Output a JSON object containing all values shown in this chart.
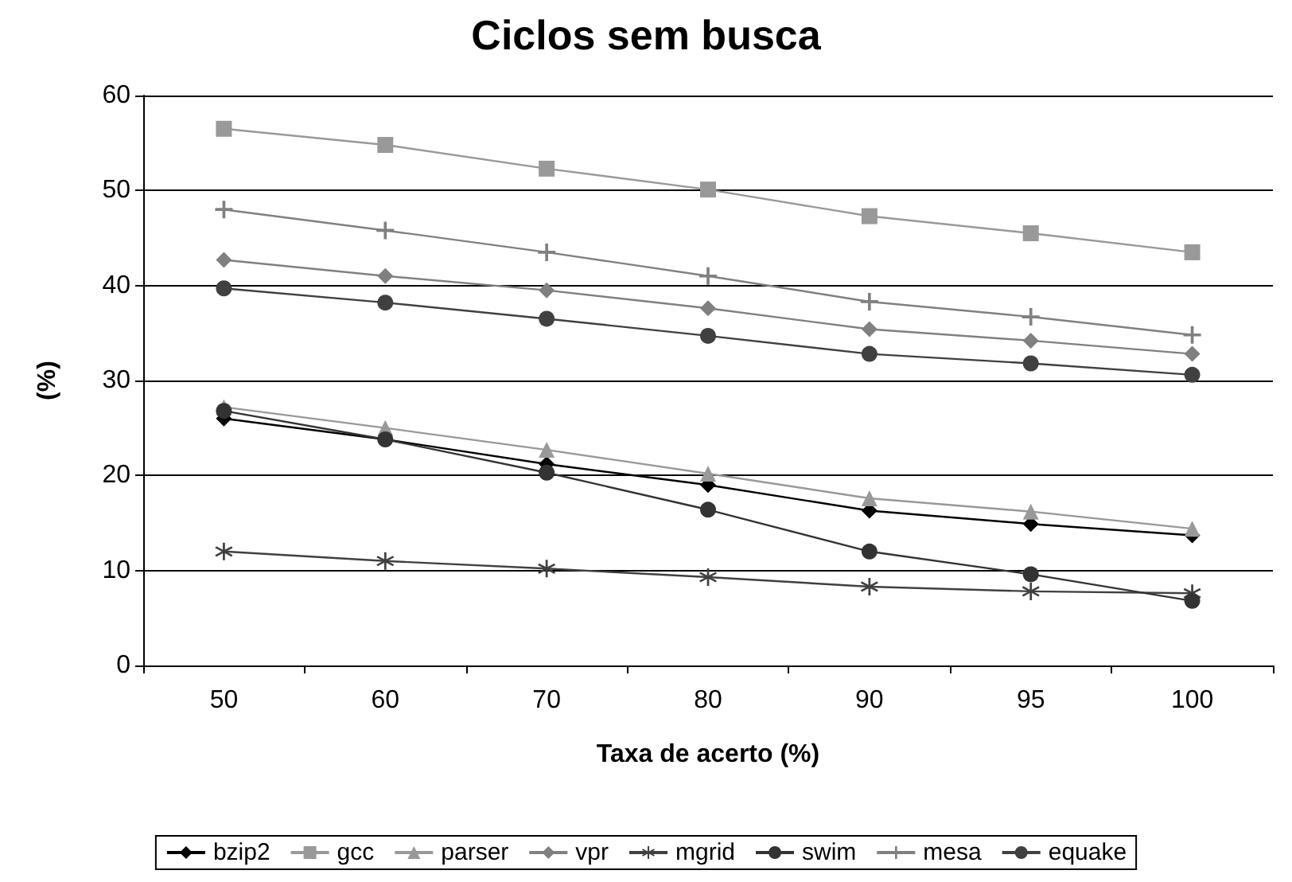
{
  "chart_data": {
    "type": "line",
    "title": "Ciclos sem busca",
    "xlabel": "Taxa de acerto (%)",
    "ylabel": "(%)",
    "categories": [
      "50",
      "60",
      "70",
      "80",
      "90",
      "95",
      "100"
    ],
    "ylim": [
      0,
      60
    ],
    "yticks": [
      0,
      10,
      20,
      30,
      40,
      50,
      60
    ],
    "grid": "y",
    "legend": "bottom",
    "line_style": "solid",
    "series": [
      {
        "name": "bzip2",
        "color": "#000000",
        "marker": "diamond",
        "values": [
          26,
          23.8,
          21.2,
          19,
          16.3,
          14.9,
          13.7
        ]
      },
      {
        "name": "gcc",
        "color": "#999999",
        "marker": "square",
        "values": [
          56.5,
          54.8,
          52.3,
          50.1,
          47.3,
          45.5,
          43.5
        ]
      },
      {
        "name": "parser",
        "color": "#999999",
        "marker": "triangle",
        "values": [
          27.2,
          25,
          22.7,
          20.2,
          17.6,
          16.2,
          14.4
        ]
      },
      {
        "name": "vpr",
        "color": "#808080",
        "marker": "diamond",
        "values": [
          42.7,
          41,
          39.5,
          37.6,
          35.4,
          34.2,
          32.8
        ]
      },
      {
        "name": "mgrid",
        "color": "#404040",
        "marker": "star",
        "values": [
          12,
          11,
          10.2,
          9.3,
          8.3,
          7.8,
          7.6
        ]
      },
      {
        "name": "swim",
        "color": "#333333",
        "marker": "circle",
        "values": [
          26.8,
          23.8,
          20.3,
          16.4,
          12,
          9.6,
          6.8
        ]
      },
      {
        "name": "mesa",
        "color": "#808080",
        "marker": "cross",
        "values": [
          48,
          45.8,
          43.5,
          41,
          38.3,
          36.7,
          34.8
        ]
      },
      {
        "name": "equake",
        "color": "#404040",
        "marker": "circle",
        "values": [
          39.7,
          38.2,
          36.5,
          34.7,
          32.8,
          31.8,
          30.6
        ]
      }
    ]
  }
}
